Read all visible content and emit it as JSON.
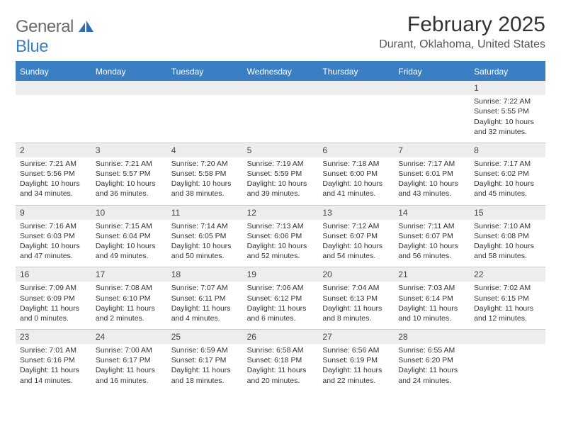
{
  "brand": {
    "text1": "General",
    "text2": "Blue"
  },
  "title": "February 2025",
  "location": "Durant, Oklahoma, United States",
  "colors": {
    "header_bg": "#3a7fc4",
    "header_text": "#ffffff",
    "daynum_bg": "#eceeee",
    "body_text": "#333333",
    "rule": "#3a7fc4"
  },
  "weekdays": [
    "Sunday",
    "Monday",
    "Tuesday",
    "Wednesday",
    "Thursday",
    "Friday",
    "Saturday"
  ],
  "weeks": [
    [
      {
        "n": "",
        "sunrise": "",
        "sunset": "",
        "daylight": ""
      },
      {
        "n": "",
        "sunrise": "",
        "sunset": "",
        "daylight": ""
      },
      {
        "n": "",
        "sunrise": "",
        "sunset": "",
        "daylight": ""
      },
      {
        "n": "",
        "sunrise": "",
        "sunset": "",
        "daylight": ""
      },
      {
        "n": "",
        "sunrise": "",
        "sunset": "",
        "daylight": ""
      },
      {
        "n": "",
        "sunrise": "",
        "sunset": "",
        "daylight": ""
      },
      {
        "n": "1",
        "sunrise": "Sunrise: 7:22 AM",
        "sunset": "Sunset: 5:55 PM",
        "daylight": "Daylight: 10 hours and 32 minutes."
      }
    ],
    [
      {
        "n": "2",
        "sunrise": "Sunrise: 7:21 AM",
        "sunset": "Sunset: 5:56 PM",
        "daylight": "Daylight: 10 hours and 34 minutes."
      },
      {
        "n": "3",
        "sunrise": "Sunrise: 7:21 AM",
        "sunset": "Sunset: 5:57 PM",
        "daylight": "Daylight: 10 hours and 36 minutes."
      },
      {
        "n": "4",
        "sunrise": "Sunrise: 7:20 AM",
        "sunset": "Sunset: 5:58 PM",
        "daylight": "Daylight: 10 hours and 38 minutes."
      },
      {
        "n": "5",
        "sunrise": "Sunrise: 7:19 AM",
        "sunset": "Sunset: 5:59 PM",
        "daylight": "Daylight: 10 hours and 39 minutes."
      },
      {
        "n": "6",
        "sunrise": "Sunrise: 7:18 AM",
        "sunset": "Sunset: 6:00 PM",
        "daylight": "Daylight: 10 hours and 41 minutes."
      },
      {
        "n": "7",
        "sunrise": "Sunrise: 7:17 AM",
        "sunset": "Sunset: 6:01 PM",
        "daylight": "Daylight: 10 hours and 43 minutes."
      },
      {
        "n": "8",
        "sunrise": "Sunrise: 7:17 AM",
        "sunset": "Sunset: 6:02 PM",
        "daylight": "Daylight: 10 hours and 45 minutes."
      }
    ],
    [
      {
        "n": "9",
        "sunrise": "Sunrise: 7:16 AM",
        "sunset": "Sunset: 6:03 PM",
        "daylight": "Daylight: 10 hours and 47 minutes."
      },
      {
        "n": "10",
        "sunrise": "Sunrise: 7:15 AM",
        "sunset": "Sunset: 6:04 PM",
        "daylight": "Daylight: 10 hours and 49 minutes."
      },
      {
        "n": "11",
        "sunrise": "Sunrise: 7:14 AM",
        "sunset": "Sunset: 6:05 PM",
        "daylight": "Daylight: 10 hours and 50 minutes."
      },
      {
        "n": "12",
        "sunrise": "Sunrise: 7:13 AM",
        "sunset": "Sunset: 6:06 PM",
        "daylight": "Daylight: 10 hours and 52 minutes."
      },
      {
        "n": "13",
        "sunrise": "Sunrise: 7:12 AM",
        "sunset": "Sunset: 6:07 PM",
        "daylight": "Daylight: 10 hours and 54 minutes."
      },
      {
        "n": "14",
        "sunrise": "Sunrise: 7:11 AM",
        "sunset": "Sunset: 6:07 PM",
        "daylight": "Daylight: 10 hours and 56 minutes."
      },
      {
        "n": "15",
        "sunrise": "Sunrise: 7:10 AM",
        "sunset": "Sunset: 6:08 PM",
        "daylight": "Daylight: 10 hours and 58 minutes."
      }
    ],
    [
      {
        "n": "16",
        "sunrise": "Sunrise: 7:09 AM",
        "sunset": "Sunset: 6:09 PM",
        "daylight": "Daylight: 11 hours and 0 minutes."
      },
      {
        "n": "17",
        "sunrise": "Sunrise: 7:08 AM",
        "sunset": "Sunset: 6:10 PM",
        "daylight": "Daylight: 11 hours and 2 minutes."
      },
      {
        "n": "18",
        "sunrise": "Sunrise: 7:07 AM",
        "sunset": "Sunset: 6:11 PM",
        "daylight": "Daylight: 11 hours and 4 minutes."
      },
      {
        "n": "19",
        "sunrise": "Sunrise: 7:06 AM",
        "sunset": "Sunset: 6:12 PM",
        "daylight": "Daylight: 11 hours and 6 minutes."
      },
      {
        "n": "20",
        "sunrise": "Sunrise: 7:04 AM",
        "sunset": "Sunset: 6:13 PM",
        "daylight": "Daylight: 11 hours and 8 minutes."
      },
      {
        "n": "21",
        "sunrise": "Sunrise: 7:03 AM",
        "sunset": "Sunset: 6:14 PM",
        "daylight": "Daylight: 11 hours and 10 minutes."
      },
      {
        "n": "22",
        "sunrise": "Sunrise: 7:02 AM",
        "sunset": "Sunset: 6:15 PM",
        "daylight": "Daylight: 11 hours and 12 minutes."
      }
    ],
    [
      {
        "n": "23",
        "sunrise": "Sunrise: 7:01 AM",
        "sunset": "Sunset: 6:16 PM",
        "daylight": "Daylight: 11 hours and 14 minutes."
      },
      {
        "n": "24",
        "sunrise": "Sunrise: 7:00 AM",
        "sunset": "Sunset: 6:17 PM",
        "daylight": "Daylight: 11 hours and 16 minutes."
      },
      {
        "n": "25",
        "sunrise": "Sunrise: 6:59 AM",
        "sunset": "Sunset: 6:17 PM",
        "daylight": "Daylight: 11 hours and 18 minutes."
      },
      {
        "n": "26",
        "sunrise": "Sunrise: 6:58 AM",
        "sunset": "Sunset: 6:18 PM",
        "daylight": "Daylight: 11 hours and 20 minutes."
      },
      {
        "n": "27",
        "sunrise": "Sunrise: 6:56 AM",
        "sunset": "Sunset: 6:19 PM",
        "daylight": "Daylight: 11 hours and 22 minutes."
      },
      {
        "n": "28",
        "sunrise": "Sunrise: 6:55 AM",
        "sunset": "Sunset: 6:20 PM",
        "daylight": "Daylight: 11 hours and 24 minutes."
      },
      {
        "n": "",
        "sunrise": "",
        "sunset": "",
        "daylight": ""
      }
    ]
  ]
}
